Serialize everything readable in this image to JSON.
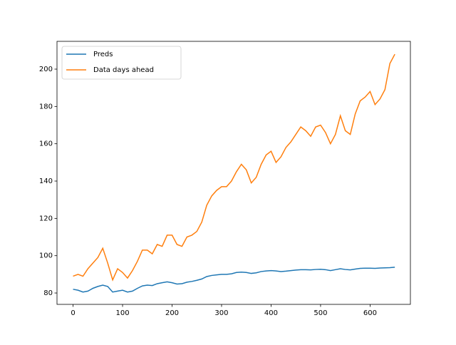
{
  "chart_data": {
    "type": "line",
    "x": [
      0,
      10,
      20,
      30,
      40,
      50,
      60,
      70,
      80,
      90,
      100,
      110,
      120,
      130,
      140,
      150,
      160,
      170,
      180,
      190,
      200,
      210,
      220,
      230,
      240,
      250,
      260,
      270,
      280,
      290,
      300,
      310,
      320,
      330,
      340,
      350,
      360,
      370,
      380,
      390,
      400,
      410,
      420,
      430,
      440,
      450,
      460,
      470,
      480,
      490,
      500,
      510,
      520,
      530,
      540,
      550,
      560,
      570,
      580,
      590,
      600,
      610,
      620,
      630,
      640,
      650
    ],
    "series": [
      {
        "name": "Preds",
        "color": "#1f77b4",
        "values": [
          82,
          81.5,
          80.5,
          81,
          82.5,
          83.5,
          84.2,
          83.5,
          80.5,
          81,
          81.5,
          80.5,
          81,
          82.5,
          83.8,
          84.2,
          84,
          85,
          85.5,
          86,
          85.5,
          84.8,
          85,
          85.8,
          86.2,
          86.8,
          87.5,
          88.8,
          89.4,
          89.7,
          90,
          90,
          90.3,
          91,
          91.2,
          91,
          90.5,
          90.8,
          91.5,
          91.8,
          92,
          91.8,
          91.5,
          91.7,
          92,
          92.3,
          92.5,
          92.5,
          92.4,
          92.6,
          92.7,
          92.5,
          92,
          92.5,
          93,
          92.6,
          92.4,
          92.8,
          93.2,
          93.3,
          93.3,
          93.2,
          93.4,
          93.5,
          93.6,
          93.8
        ]
      },
      {
        "name": "Data days ahead",
        "color": "#ff7f0e",
        "values": [
          89,
          90,
          89,
          93,
          96,
          99,
          104,
          96,
          87,
          93,
          91,
          88,
          92,
          97,
          103,
          103,
          101,
          106,
          105,
          111,
          111,
          106,
          105,
          110,
          111,
          113,
          118,
          127,
          132,
          135,
          137,
          137,
          140,
          145,
          149,
          146,
          139,
          142,
          149,
          154,
          156,
          150,
          153,
          158,
          161,
          165,
          169,
          167,
          164,
          169,
          170,
          166,
          160,
          165,
          175,
          167,
          165,
          176,
          183,
          185,
          188,
          181,
          184,
          189,
          203,
          208
        ]
      }
    ],
    "xlim": [
      -32.45,
      681.45
    ],
    "ylim": [
      73.9,
      214.9
    ],
    "xticks": [
      0,
      100,
      200,
      300,
      400,
      500,
      600
    ],
    "yticks": [
      80,
      100,
      120,
      140,
      160,
      180,
      200
    ],
    "legend": "upper left"
  }
}
